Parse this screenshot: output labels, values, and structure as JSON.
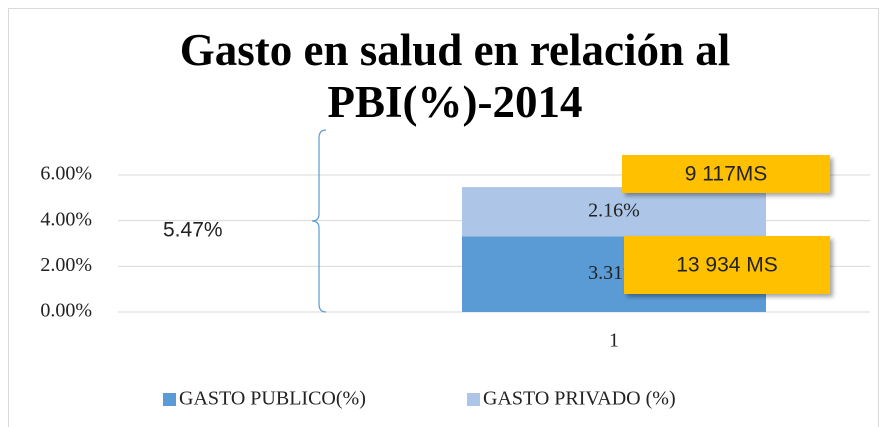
{
  "chart_data": {
    "type": "stacked_bar",
    "title": "Gasto en salud en relación al PBI(%)-2014",
    "categories": [
      "1"
    ],
    "series": [
      {
        "name": "GASTO PUBLICO(%)",
        "color": "#5b9bd5",
        "values": [
          3.31
        ],
        "value_labels": [
          "3.31%"
        ]
      },
      {
        "name": "GASTO PRIVADO (%)",
        "color": "#adc5e7",
        "values": [
          2.16
        ],
        "value_labels": [
          "2.16%"
        ]
      }
    ],
    "ylim": [
      0,
      6
    ],
    "yticks": [
      {
        "value": 0,
        "label": "0.00%"
      },
      {
        "value": 2,
        "label": "2.00%"
      },
      {
        "value": 4,
        "label": "4.00%"
      },
      {
        "value": 6,
        "label": "6.00%"
      }
    ],
    "grid": true,
    "legend": "bottom",
    "annotations": [
      "5.47%",
      "9 117MS",
      "13 934 MS"
    ]
  }
}
